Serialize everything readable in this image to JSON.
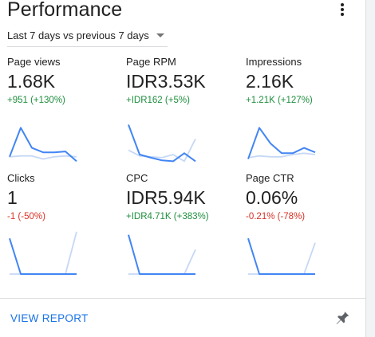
{
  "card": {
    "title": "Performance",
    "period": "Last 7 days vs previous 7 days",
    "view_report": "VIEW REPORT"
  },
  "colors": {
    "current_line": "#4285f4",
    "previous_line": "#c6d8f5",
    "positive": "#1e8e3e",
    "negative": "#d93025",
    "link": "#1a73e8"
  },
  "metrics": [
    {
      "label": "Page views",
      "value": "1.68K",
      "change": "+951 (+130%)",
      "trend": "up",
      "current": [
        0.2,
        0.85,
        0.4,
        0.3,
        0.3,
        0.32,
        0.1
      ],
      "previous": [
        0.2,
        0.22,
        0.22,
        0.15,
        0.2,
        0.22,
        0.2
      ]
    },
    {
      "label": "Page RPM",
      "value": "IDR3.53K",
      "change": "+IDR162 (+5%)",
      "trend": "up",
      "current": [
        0.92,
        0.25,
        0.18,
        0.12,
        0.1,
        0.28,
        0.1
      ],
      "previous": [
        0.35,
        0.22,
        0.2,
        0.18,
        0.25,
        0.1,
        0.6
      ]
    },
    {
      "label": "Impressions",
      "value": "2.16K",
      "change": "+1.21K (+127%)",
      "trend": "up",
      "current": [
        0.15,
        0.85,
        0.5,
        0.28,
        0.28,
        0.4,
        0.3
      ],
      "previous": [
        0.18,
        0.22,
        0.2,
        0.2,
        0.25,
        0.28,
        0.25
      ]
    },
    {
      "label": "Clicks",
      "value": "1",
      "change": "-1 (-50%)",
      "trend": "down",
      "current": [
        0.8,
        0,
        0,
        0,
        0,
        0,
        0
      ],
      "previous": [
        0,
        0,
        0,
        0,
        0,
        0,
        0.95
      ]
    },
    {
      "label": "CPC",
      "value": "IDR5.94K",
      "change": "+IDR4.71K (+383%)",
      "trend": "up",
      "current": [
        0.88,
        0,
        0,
        0,
        0,
        0,
        0
      ],
      "previous": [
        0,
        0,
        0,
        0,
        0,
        0,
        0.55
      ]
    },
    {
      "label": "Page CTR",
      "value": "0.06%",
      "change": "-0.21% (-78%)",
      "trend": "down",
      "current": [
        0.8,
        0,
        0,
        0,
        0,
        0,
        0
      ],
      "previous": [
        0,
        0,
        0,
        0,
        0,
        0,
        0.7
      ]
    }
  ]
}
